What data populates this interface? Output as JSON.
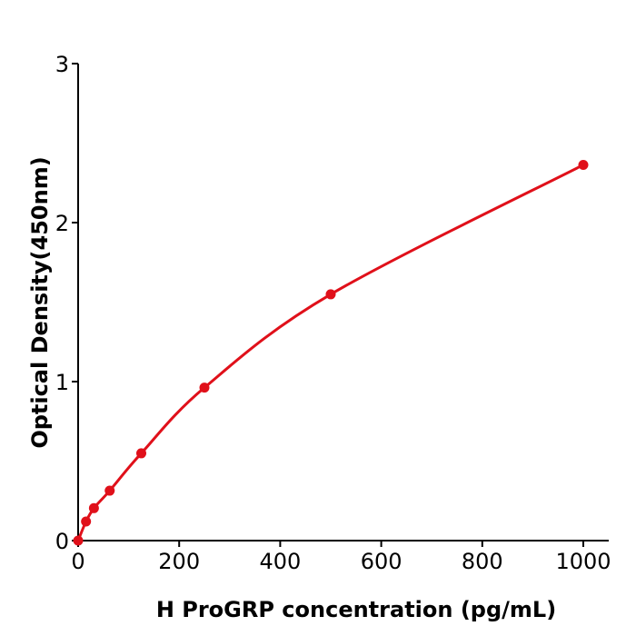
{
  "chart_data": {
    "type": "line",
    "title": "",
    "xlabel": "H  ProGRP concentration (pg/mL)",
    "ylabel": "Optical Density(450nm)",
    "xlim": [
      0,
      1050
    ],
    "ylim": [
      0,
      3
    ],
    "xticks": [
      "0",
      "200",
      "400",
      "600",
      "800",
      "1000"
    ],
    "yticks": [
      "0",
      "1",
      "2",
      "3"
    ],
    "grid": false,
    "series": [
      {
        "x": [
          0,
          15.6,
          31.25,
          62.5,
          125,
          250,
          500,
          1000
        ],
        "y": [
          0,
          0.12,
          0.204,
          0.314,
          0.549,
          0.962,
          1.549,
          2.363
        ],
        "color": "#e0101a"
      }
    ]
  }
}
